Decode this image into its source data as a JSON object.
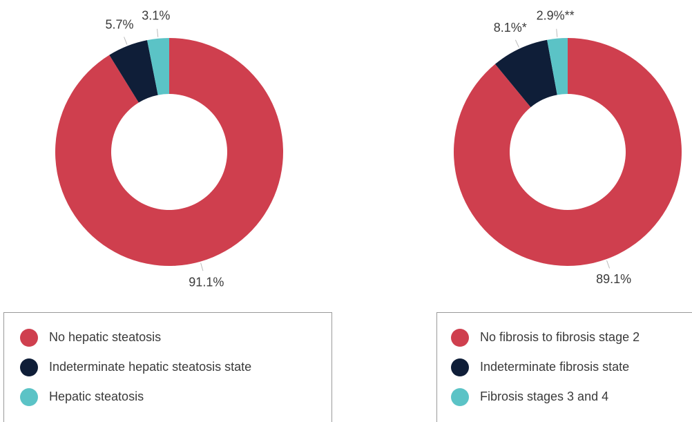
{
  "chart_data": [
    {
      "type": "donut",
      "categories": [
        "No hepatic steatosis",
        "Indeterminate hepatic steatosis state",
        "Hepatic steatosis"
      ],
      "values": [
        91.1,
        5.7,
        3.1
      ],
      "value_labels": [
        "91.1%",
        "5.7%",
        "3.1%"
      ],
      "colors": [
        "#cf3f4e",
        "#0f1e38",
        "#5bc3c6"
      ]
    },
    {
      "type": "donut",
      "categories": [
        "No fibrosis to fibrosis stage 2",
        "Indeterminate fibrosis state",
        "Fibrosis stages 3 and 4"
      ],
      "values": [
        89.1,
        8.1,
        2.9
      ],
      "value_labels": [
        "89.1%",
        "8.1%*",
        "2.9%**"
      ],
      "colors": [
        "#cf3f4e",
        "#0f1e38",
        "#5bc3c6"
      ]
    }
  ]
}
